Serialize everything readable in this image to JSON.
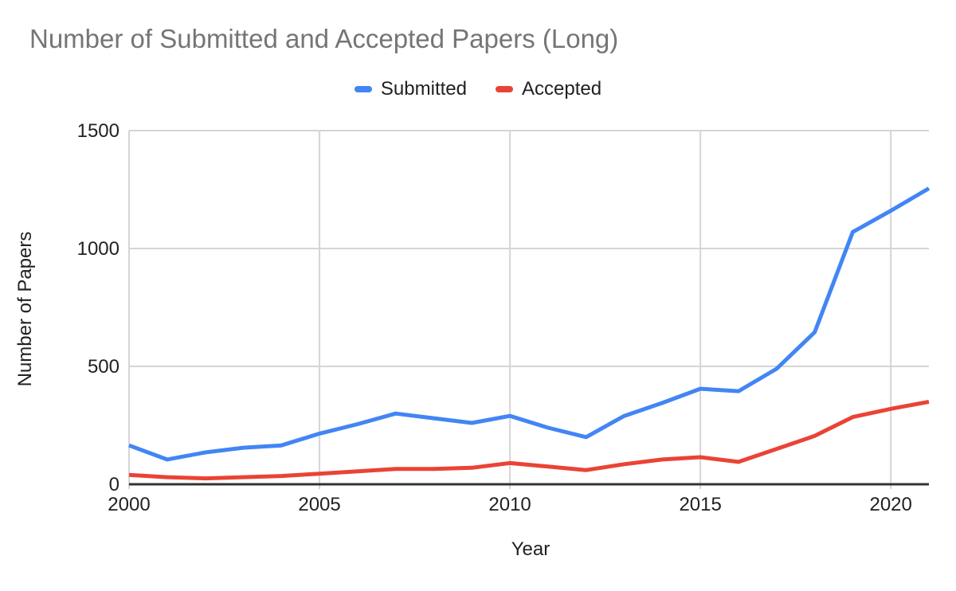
{
  "title": "Number of Submitted and Accepted Papers (Long)",
  "legend": [
    {
      "label": "Submitted",
      "color": "#4285F4"
    },
    {
      "label": "Accepted",
      "color": "#EA4335"
    }
  ],
  "x_axis": {
    "label": "Year",
    "tick_labels": [
      "2000",
      "2005",
      "2010",
      "2015",
      "2020"
    ]
  },
  "y_axis": {
    "label": "Number of Papers",
    "tick_labels": [
      "0",
      "500",
      "1000",
      "1500"
    ]
  },
  "colors": {
    "title_text": "#757575",
    "tick_text": "#212121",
    "gridline": "#d5d5d5",
    "axis_line": "#333333",
    "background": "#ffffff"
  },
  "chart_data": {
    "type": "line",
    "title": "Number of Submitted and Accepted Papers (Long)",
    "xlabel": "Year",
    "ylabel": "Number of Papers",
    "x": [
      2000,
      2001,
      2002,
      2003,
      2004,
      2005,
      2006,
      2007,
      2008,
      2009,
      2010,
      2011,
      2012,
      2013,
      2014,
      2015,
      2016,
      2017,
      2018,
      2019,
      2020,
      2021
    ],
    "series": [
      {
        "name": "Submitted",
        "color": "#4285F4",
        "values": [
          165,
          105,
          135,
          155,
          165,
          215,
          255,
          300,
          280,
          260,
          290,
          240,
          200,
          290,
          345,
          405,
          395,
          490,
          645,
          1070,
          1160,
          1255
        ]
      },
      {
        "name": "Accepted",
        "color": "#EA4335",
        "values": [
          40,
          30,
          25,
          30,
          35,
          45,
          55,
          65,
          65,
          70,
          90,
          75,
          60,
          85,
          105,
          115,
          95,
          150,
          205,
          285,
          320,
          350
        ]
      }
    ],
    "xlim": [
      2000,
      2021
    ],
    "ylim": [
      0,
      1500
    ],
    "x_gridlines": [
      2000,
      2005,
      2010,
      2015,
      2020
    ],
    "y_gridlines": [
      0,
      500,
      1000,
      1500
    ],
    "grid": true,
    "legend_position": "top-center"
  }
}
